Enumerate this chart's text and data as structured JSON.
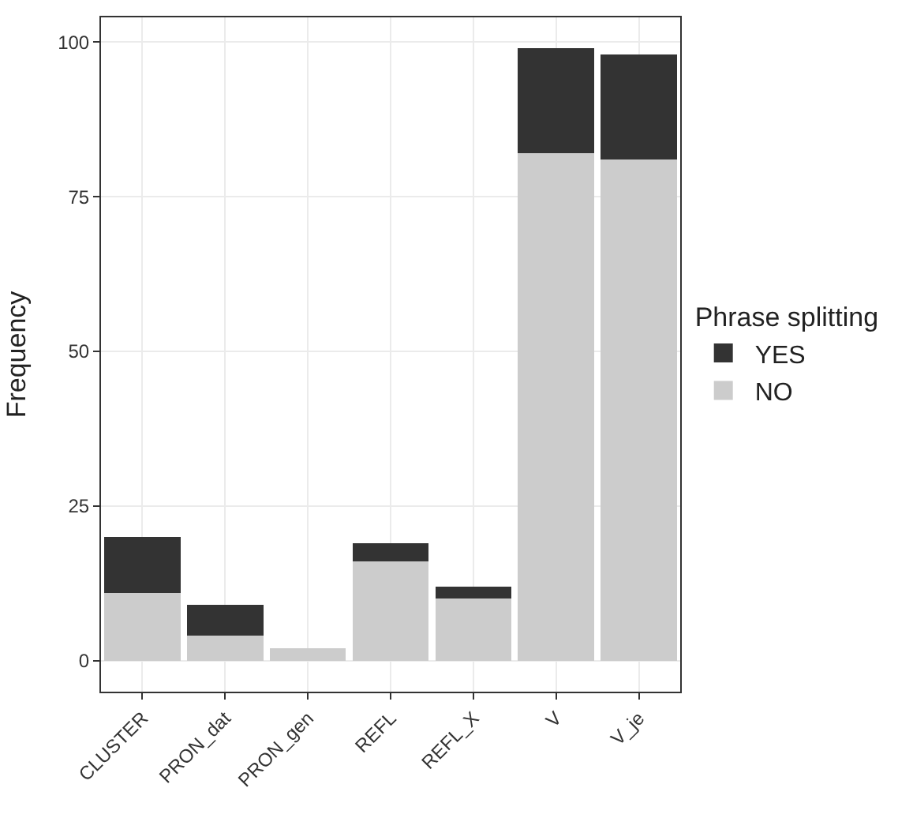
{
  "chart_data": {
    "type": "bar",
    "stacked": true,
    "ylabel": "Frequency",
    "legend_title": "Phrase splitting",
    "legend": "right",
    "categories": [
      "CLUSTER",
      "PRON_dat",
      "PRON_gen",
      "REFL",
      "REFL_X",
      "V",
      "V_je"
    ],
    "series": [
      {
        "name": "NO",
        "color": "#cccccc",
        "values": [
          11,
          4,
          2,
          16,
          10,
          82,
          81
        ]
      },
      {
        "name": "YES",
        "color": "#333333",
        "values": [
          9,
          5,
          0,
          3,
          2,
          17,
          17
        ]
      }
    ],
    "ylim": [
      -5,
      104
    ],
    "yticks": [
      0,
      25,
      50,
      75,
      100
    ],
    "grid": true
  }
}
